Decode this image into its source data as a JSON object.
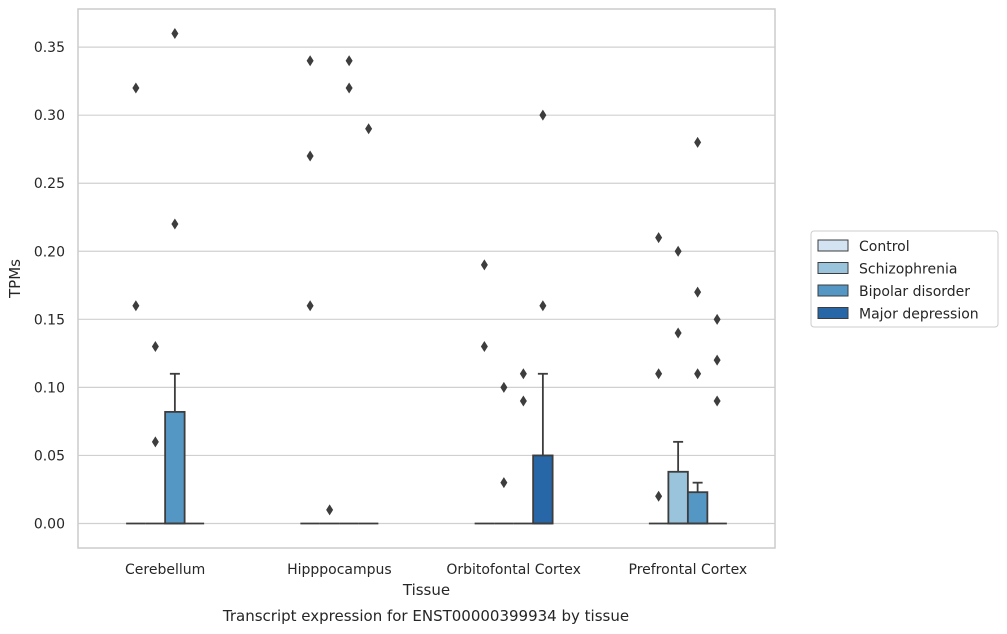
{
  "caption": "Transcript expression for ENST00000399934 by tissue",
  "chart_data": {
    "type": "box",
    "xlabel": "Tissue",
    "ylabel": "TPMs",
    "ylim": [
      -0.018,
      0.378
    ],
    "yticks": [
      0.0,
      0.05,
      0.1,
      0.15,
      0.2,
      0.25,
      0.3,
      0.35
    ],
    "ytick_labels": [
      "0.00",
      "0.05",
      "0.10",
      "0.15",
      "0.20",
      "0.25",
      "0.30",
      "0.35"
    ],
    "grid": "horizontal",
    "legend_position": "right",
    "categories": [
      "Cerebellum",
      "Hipppocampus",
      "Orbitofontal Cortex",
      "Prefrontal Cortex"
    ],
    "series": [
      {
        "name": "Control",
        "color": "#d3e3f1",
        "boxes": [
          {
            "q1": 0,
            "median": 0,
            "q3": 0,
            "whisker_low": 0,
            "whisker_high": 0,
            "fliers": [
              0.16,
              0.32
            ]
          },
          {
            "q1": 0,
            "median": 0,
            "q3": 0,
            "whisker_low": 0,
            "whisker_high": 0,
            "fliers": [
              0.16,
              0.27,
              0.34
            ]
          },
          {
            "q1": 0,
            "median": 0,
            "q3": 0,
            "whisker_low": 0,
            "whisker_high": 0,
            "fliers": [
              0.13,
              0.19
            ]
          },
          {
            "q1": 0,
            "median": 0,
            "q3": 0,
            "whisker_low": 0,
            "whisker_high": 0,
            "fliers": [
              0.02,
              0.11,
              0.21
            ]
          }
        ]
      },
      {
        "name": "Schizophrenia",
        "color": "#9ac3dc",
        "boxes": [
          {
            "q1": 0,
            "median": 0,
            "q3": 0,
            "whisker_low": 0,
            "whisker_high": 0,
            "fliers": [
              0.06,
              0.13
            ]
          },
          {
            "q1": 0,
            "median": 0,
            "q3": 0,
            "whisker_low": 0,
            "whisker_high": 0,
            "fliers": [
              0.01
            ]
          },
          {
            "q1": 0,
            "median": 0,
            "q3": 0,
            "whisker_low": 0,
            "whisker_high": 0,
            "fliers": [
              0.03,
              0.1
            ]
          },
          {
            "q1": 0,
            "median": 0,
            "q3": 0.038,
            "whisker_low": 0,
            "whisker_high": 0.06,
            "fliers": [
              0.14,
              0.2
            ]
          }
        ]
      },
      {
        "name": "Bipolar disorder",
        "color": "#5496c4",
        "boxes": [
          {
            "q1": 0,
            "median": 0,
            "q3": 0.082,
            "whisker_low": 0,
            "whisker_high": 0.11,
            "fliers": [
              0.22,
              0.36
            ]
          },
          {
            "q1": 0,
            "median": 0,
            "q3": 0,
            "whisker_low": 0,
            "whisker_high": 0,
            "fliers": [
              0.32,
              0.34
            ]
          },
          {
            "q1": 0,
            "median": 0,
            "q3": 0,
            "whisker_low": 0,
            "whisker_high": 0,
            "fliers": [
              0.09,
              0.11
            ]
          },
          {
            "q1": 0,
            "median": 0,
            "q3": 0.023,
            "whisker_low": 0,
            "whisker_high": 0.03,
            "fliers": [
              0.11,
              0.17,
              0.28
            ]
          }
        ]
      },
      {
        "name": "Major depression",
        "color": "#2767a7",
        "boxes": [
          {
            "q1": 0,
            "median": 0,
            "q3": 0,
            "whisker_low": 0,
            "whisker_high": 0,
            "fliers": []
          },
          {
            "q1": 0,
            "median": 0,
            "q3": 0,
            "whisker_low": 0,
            "whisker_high": 0,
            "fliers": [
              0.29
            ]
          },
          {
            "q1": 0,
            "median": 0,
            "q3": 0.05,
            "whisker_low": 0,
            "whisker_high": 0.11,
            "fliers": [
              0.16,
              0.3
            ]
          },
          {
            "q1": 0,
            "median": 0,
            "q3": 0,
            "whisker_low": 0,
            "whisker_high": 0,
            "fliers": [
              0.09,
              0.12,
              0.15
            ]
          }
        ]
      }
    ]
  }
}
